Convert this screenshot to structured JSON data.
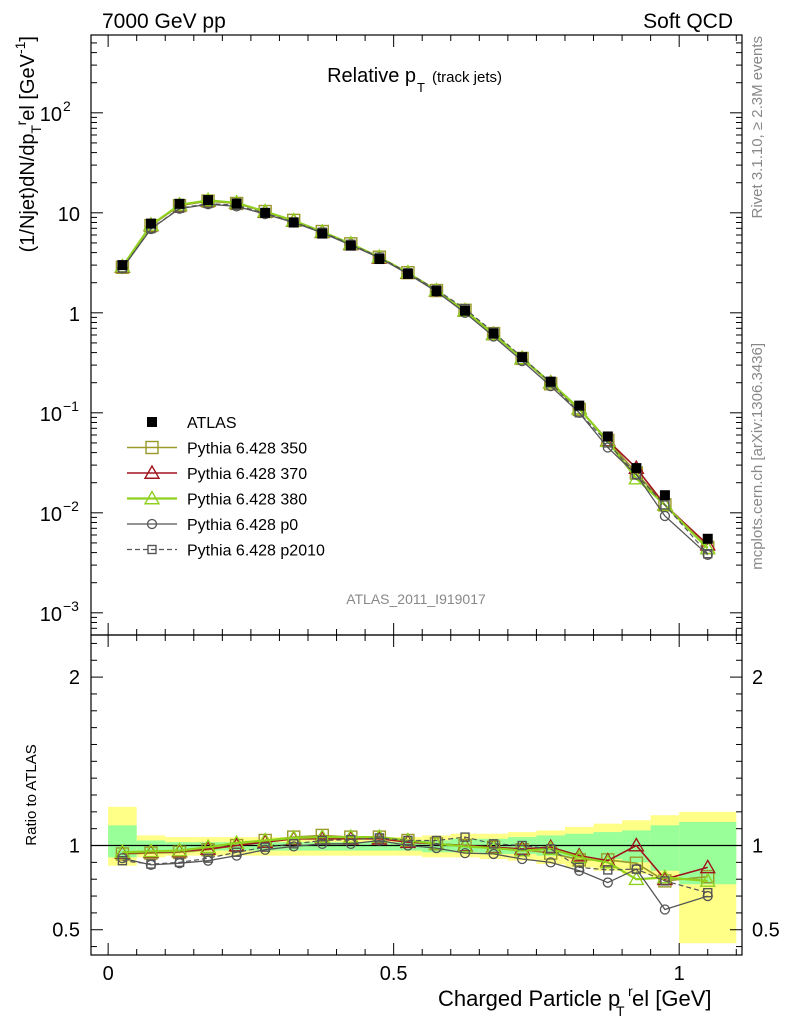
{
  "header": {
    "left": "7000 GeV pp",
    "right": "Soft QCD"
  },
  "side_labels": {
    "rivet": "Rivet 3.1.10, ≥ 2.3M events",
    "mcplots": "mcplots.cern.ch [arXiv:1306.3436]"
  },
  "analysis_id": "ATLAS_2011_I919017",
  "colors": {
    "atlas": "#000000",
    "p350": "#9a9a2a",
    "p370": "#a01520",
    "p380": "#8fd11f",
    "p0": "#555555",
    "p2010": "#555555",
    "band_yellow": "#ffff88",
    "band_green": "#99ff99"
  },
  "chart_data": [
    {
      "type": "line",
      "title": "Relative p_T (track jets)",
      "title_main": "Relative p",
      "title_sub": "T",
      "title_extra": "(track jets)",
      "ylabel": "(1/Njet)dN/dp_T^rel [GeV^-1]",
      "yscale": "log",
      "ylim": [
        0.0006,
        600
      ],
      "xlim": [
        -0.03,
        1.11
      ],
      "yticks": [
        {
          "v": 0.001,
          "b": "10",
          "e": "−3"
        },
        {
          "v": 0.01,
          "b": "10",
          "e": "−2"
        },
        {
          "v": 0.1,
          "b": "10",
          "e": "−1"
        },
        {
          "v": 1,
          "b": "1",
          "e": ""
        },
        {
          "v": 10,
          "b": "10",
          "e": ""
        },
        {
          "v": 100,
          "b": "10",
          "e": "2"
        }
      ],
      "x": [
        0.025,
        0.075,
        0.125,
        0.175,
        0.225,
        0.275,
        0.325,
        0.375,
        0.425,
        0.475,
        0.525,
        0.575,
        0.625,
        0.675,
        0.725,
        0.775,
        0.825,
        0.875,
        0.925,
        0.975,
        1.05
      ],
      "legend": [
        "ATLAS",
        "Pythia 6.428 350",
        "Pythia 6.428 370",
        "Pythia 6.428 380",
        "Pythia 6.428 p0",
        "Pythia 6.428 p2010"
      ],
      "series": [
        {
          "name": "ATLAS",
          "values": [
            3.0,
            7.8,
            12.3,
            13.4,
            12.4,
            10.0,
            8.0,
            6.2,
            4.7,
            3.45,
            2.45,
            1.65,
            1.05,
            0.62,
            0.36,
            0.205,
            0.118,
            0.058,
            0.028,
            0.015,
            0.0055
          ]
        },
        {
          "name": "Pythia 6.428 350",
          "values": [
            2.85,
            7.45,
            11.8,
            13.1,
            12.4,
            10.3,
            8.4,
            6.5,
            4.9,
            3.6,
            2.52,
            1.67,
            1.06,
            0.62,
            0.35,
            0.195,
            0.108,
            0.053,
            0.025,
            0.012,
            0.0045
          ]
        },
        {
          "name": "Pythia 6.428 370",
          "values": [
            2.88,
            7.5,
            11.9,
            13.2,
            12.5,
            10.2,
            8.3,
            6.4,
            4.85,
            3.55,
            2.5,
            1.66,
            1.05,
            0.61,
            0.35,
            0.2,
            0.11,
            0.053,
            0.028,
            0.012,
            0.0048
          ]
        },
        {
          "name": "Pythia 6.428 380",
          "values": [
            2.9,
            7.55,
            12.0,
            13.3,
            12.6,
            10.3,
            8.35,
            6.45,
            4.9,
            3.6,
            2.52,
            1.67,
            1.05,
            0.61,
            0.35,
            0.2,
            0.11,
            0.052,
            0.022,
            0.012,
            0.0044
          ]
        },
        {
          "name": "Pythia 6.428 p0",
          "values": [
            2.78,
            6.9,
            11.0,
            12.2,
            11.6,
            9.7,
            8.0,
            6.3,
            4.75,
            3.55,
            2.45,
            1.63,
            1.0,
            0.58,
            0.33,
            0.185,
            0.1,
            0.045,
            0.024,
            0.0093,
            0.0038
          ]
        },
        {
          "name": "Pythia 6.428 p2010",
          "values": [
            2.8,
            6.95,
            11.1,
            12.4,
            11.9,
            9.9,
            8.1,
            6.4,
            4.85,
            3.6,
            2.52,
            1.7,
            1.1,
            0.64,
            0.36,
            0.2,
            0.1,
            0.05,
            0.024,
            0.012,
            0.0039
          ]
        }
      ]
    },
    {
      "type": "line",
      "ylabel": "Ratio to ATLAS",
      "xlabel": "Charged Particle p_T^rel [GeV]",
      "xlabel_main": "Charged Particle p",
      "xlabel_sup": "r",
      "xlabel_sub": "T",
      "xlabel_tail": "el [GeV]",
      "ylim": [
        0.35,
        2.25
      ],
      "xlim": [
        -0.03,
        1.11
      ],
      "yticks": [
        0.5,
        1,
        2
      ],
      "xticks": [
        0,
        0.5,
        1
      ],
      "x": [
        0.025,
        0.075,
        0.125,
        0.175,
        0.225,
        0.275,
        0.325,
        0.375,
        0.425,
        0.475,
        0.525,
        0.575,
        0.625,
        0.675,
        0.725,
        0.775,
        0.825,
        0.875,
        0.925,
        0.975,
        1.05
      ],
      "band_edges": [
        0,
        0.05,
        0.1,
        0.15,
        0.2,
        0.25,
        0.3,
        0.35,
        0.4,
        0.45,
        0.5,
        0.55,
        0.6,
        0.65,
        0.7,
        0.75,
        0.8,
        0.85,
        0.9,
        0.95,
        1.0,
        1.1
      ],
      "band_yellow": [
        [
          0.88,
          1.23
        ],
        [
          0.93,
          1.06
        ],
        [
          0.94,
          1.05
        ],
        [
          0.94,
          1.05
        ],
        [
          0.94,
          1.05
        ],
        [
          0.94,
          1.05
        ],
        [
          0.94,
          1.05
        ],
        [
          0.94,
          1.05
        ],
        [
          0.94,
          1.05
        ],
        [
          0.94,
          1.05
        ],
        [
          0.94,
          1.05
        ],
        [
          0.93,
          1.06
        ],
        [
          0.93,
          1.07
        ],
        [
          0.92,
          1.07
        ],
        [
          0.91,
          1.08
        ],
        [
          0.89,
          1.09
        ],
        [
          0.87,
          1.11
        ],
        [
          0.85,
          1.13
        ],
        [
          0.83,
          1.15
        ],
        [
          0.8,
          1.18
        ],
        [
          0.42,
          1.2
        ]
      ],
      "band_green": [
        [
          0.93,
          1.12
        ],
        [
          0.96,
          1.03
        ],
        [
          0.96,
          1.02
        ],
        [
          0.97,
          1.02
        ],
        [
          0.97,
          1.02
        ],
        [
          0.97,
          1.02
        ],
        [
          0.97,
          1.02
        ],
        [
          0.97,
          1.02
        ],
        [
          0.97,
          1.02
        ],
        [
          0.97,
          1.02
        ],
        [
          0.97,
          1.02
        ],
        [
          0.96,
          1.03
        ],
        [
          0.96,
          1.04
        ],
        [
          0.95,
          1.04
        ],
        [
          0.95,
          1.05
        ],
        [
          0.94,
          1.06
        ],
        [
          0.93,
          1.07
        ],
        [
          0.92,
          1.08
        ],
        [
          0.9,
          1.09
        ],
        [
          0.85,
          1.12
        ],
        [
          0.77,
          1.14
        ]
      ],
      "series": [
        {
          "name": "Pythia 6.428 350",
          "values": [
            0.95,
            0.955,
            0.96,
            0.975,
            1.0,
            1.03,
            1.05,
            1.06,
            1.05,
            1.05,
            1.03,
            1.01,
            1.0,
            0.99,
            0.975,
            0.955,
            0.915,
            0.915,
            0.895,
            0.79,
            0.815
          ]
        },
        {
          "name": "Pythia 6.428 370",
          "values": [
            0.955,
            0.96,
            0.965,
            0.98,
            1.0,
            1.02,
            1.04,
            1.04,
            1.04,
            1.04,
            1.02,
            1.01,
            1.0,
            0.99,
            0.98,
            0.99,
            0.94,
            0.91,
            1.0,
            0.8,
            0.87
          ]
        },
        {
          "name": "Pythia 6.428 380",
          "values": [
            0.96,
            0.965,
            0.97,
            0.99,
            1.015,
            1.03,
            1.045,
            1.05,
            1.05,
            1.05,
            1.03,
            1.01,
            0.995,
            0.985,
            0.97,
            0.98,
            0.93,
            0.9,
            0.8,
            0.81,
            0.79
          ]
        },
        {
          "name": "Pythia 6.428 p0",
          "values": [
            0.925,
            0.885,
            0.895,
            0.91,
            0.94,
            0.975,
            0.995,
            1.01,
            1.01,
            1.03,
            1.0,
            0.985,
            0.955,
            0.95,
            0.92,
            0.9,
            0.85,
            0.78,
            0.86,
            0.62,
            0.7
          ]
        },
        {
          "name": "Pythia 6.428 p2010",
          "values": [
            0.91,
            0.89,
            0.9,
            0.925,
            0.96,
            0.99,
            1.01,
            1.03,
            1.035,
            1.045,
            1.03,
            1.03,
            1.05,
            1.01,
            1.0,
            0.98,
            0.87,
            0.855,
            0.86,
            0.79,
            0.72
          ]
        }
      ]
    }
  ]
}
